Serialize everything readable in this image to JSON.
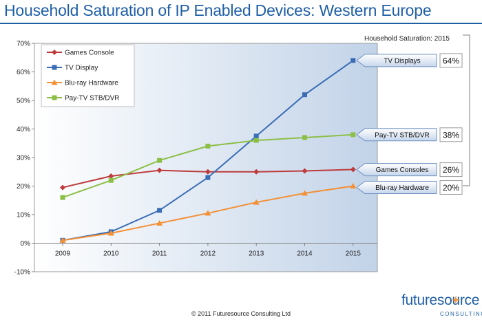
{
  "title": "Household Saturation of IP Enabled Devices: Western Europe",
  "copyright": "© 2011 Futuresource Consulting Ltd",
  "logo": {
    "word": "futuresource",
    "sub": "CONSULTING"
  },
  "side_panel": {
    "heading": "Household Saturation: 2015",
    "callouts": [
      {
        "label": "TV Displays",
        "value": "64%",
        "y": 64
      },
      {
        "label": "Pay-TV STB/DVR",
        "value": "38%",
        "y": 38
      },
      {
        "label": "Games Consoles",
        "value": "26%",
        "y": 26
      },
      {
        "label": "Blu-ray Hardware",
        "value": "20%",
        "y": 20
      }
    ]
  },
  "chart_data": {
    "type": "line",
    "x": [
      "2009",
      "2010",
      "2011",
      "2012",
      "2013",
      "2014",
      "2015"
    ],
    "ylim": [
      -10,
      70
    ],
    "yticks": [
      "-10%",
      "0%",
      "10%",
      "20%",
      "30%",
      "40%",
      "50%",
      "60%",
      "70%"
    ],
    "ytick_values": [
      -10,
      0,
      10,
      20,
      30,
      40,
      50,
      60,
      70
    ],
    "legend_position": "top-left",
    "grid": false,
    "series": [
      {
        "name": "Games Console",
        "color": "#be3b3b",
        "marker": "diamond",
        "values": [
          19.5,
          23.5,
          25.5,
          25,
          25,
          25.3,
          25.8
        ]
      },
      {
        "name": "TV Display",
        "color": "#3a6db5",
        "marker": "square",
        "values": [
          1,
          4,
          11.5,
          23,
          37.5,
          52,
          64
        ]
      },
      {
        "name": "Blu-ray Hardware",
        "color": "#f39036",
        "marker": "triangle",
        "values": [
          1,
          3.5,
          7,
          10.5,
          14.3,
          17.5,
          20
        ]
      },
      {
        "name": "Pay-TV STB/DVR",
        "color": "#8cbf46",
        "marker": "square",
        "values": [
          16,
          22,
          29,
          34,
          36,
          37,
          38
        ]
      }
    ]
  }
}
